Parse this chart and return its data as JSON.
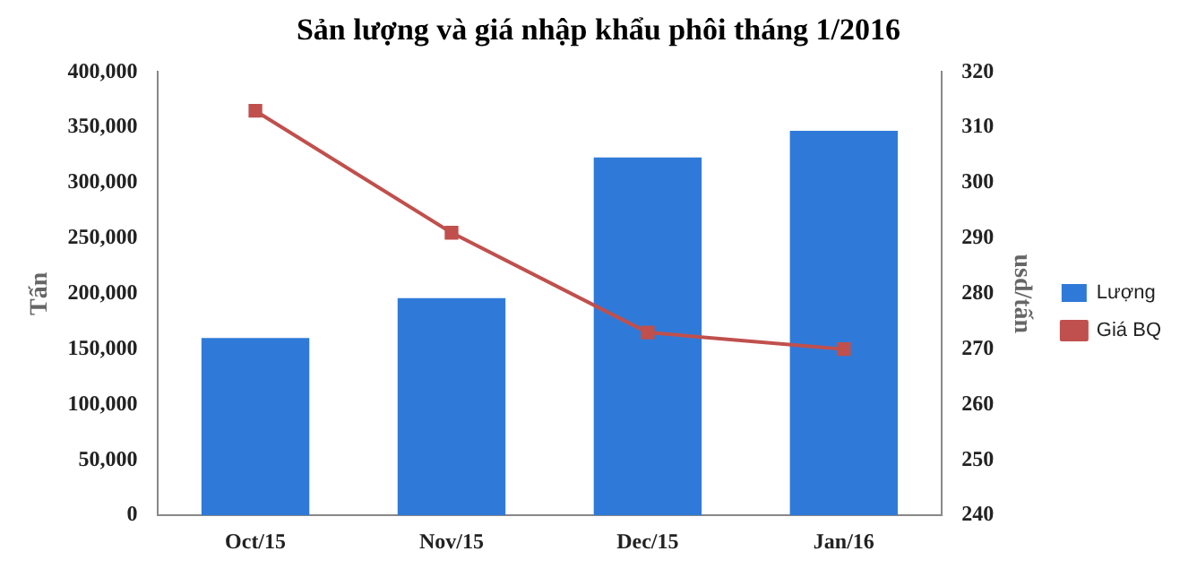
{
  "chart_data": {
    "type": "bar",
    "title": "Sản lượng và giá nhập khẩu phôi tháng 1/2016",
    "ylabel": "Tấn",
    "y2label": "usd/tấn",
    "categories": [
      "Oct/15",
      "Nov/15",
      "Dec/15",
      "Jan/16"
    ],
    "series": [
      {
        "name": "Lượng",
        "color": "#2f7ad8",
        "values": [
          160000,
          196000,
          323000,
          347000
        ]
      },
      {
        "name": "Giá BQ",
        "type": "line",
        "axis": "y2",
        "color": "#c0504d",
        "marker": "square",
        "values": [
          313,
          291,
          273,
          270
        ]
      }
    ],
    "ylim": [
      0,
      400000
    ],
    "yticks": [
      0,
      {
        "value": 50000,
        "label": "50,000"
      },
      {
        "value": 100000,
        "label": "100,000"
      },
      {
        "value": 150000,
        "label": "150,000"
      },
      {
        "value": 200000,
        "label": "200,000"
      },
      {
        "value": 250000,
        "label": "250,000"
      },
      {
        "value": 300000,
        "label": "300,000"
      },
      {
        "value": 350000,
        "label": "350,000"
      },
      {
        "value": 400000,
        "label": "400,000"
      }
    ],
    "y2lim": [
      240,
      320
    ],
    "y2ticks": [
      240,
      250,
      260,
      270,
      280,
      290,
      300,
      310,
      320
    ],
    "grid": false,
    "legend": "right"
  }
}
